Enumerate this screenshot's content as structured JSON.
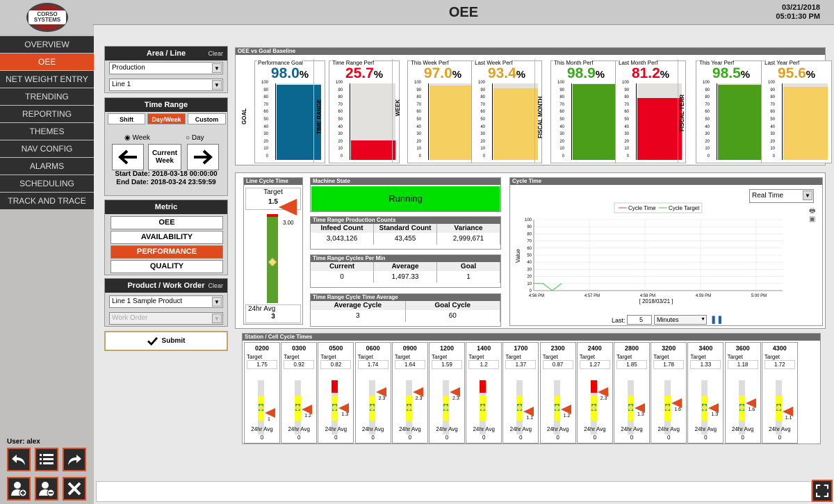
{
  "header": {
    "title": "OEE",
    "date": "03/21/2018",
    "time": "05:01:30 PM",
    "logo_text": "CORSO SYSTEMS"
  },
  "nav": [
    "OVERVIEW",
    "OEE",
    "NET WEIGHT ENTRY",
    "TRENDING",
    "REPORTING",
    "THEMES",
    "NAV CONFIG",
    "ALARMS",
    "SCHEDULING",
    "TRACK AND TRACE"
  ],
  "nav_active": "OEE",
  "user": "User: alex",
  "area_line": {
    "title": "Area / Line",
    "clear": "Clear",
    "area": "Production",
    "line": "Line 1"
  },
  "time_range": {
    "title": "Time Range",
    "tabs": [
      "Shift",
      "Day/Week",
      "Custom"
    ],
    "active_tab": "Day/Week",
    "week": "Week",
    "day": "Day",
    "current": "Current Week",
    "start": "Start Date: 2018-03-18 00:00:00",
    "end": "End Date: 2018-03-24 23:59:59"
  },
  "metric": {
    "title": "Metric",
    "options": [
      "OEE",
      "AVAILABILITY",
      "PERFORMANCE",
      "QUALITY"
    ],
    "active": "PERFORMANCE"
  },
  "product": {
    "title": "Product / Work Order",
    "clear": "Clear",
    "product": "Line 1 Sample Product",
    "work_order_placeholder": "Work Order"
  },
  "submit_label": "Submit",
  "oee_panel": {
    "title": "OEE vs Goal Baseline",
    "groups": [
      "GOAL",
      "TIME RANGE",
      "WEEK",
      "FISCAL MONTH",
      "FISCAL YEAR"
    ],
    "ticks": [
      "100",
      "90",
      "80",
      "70",
      "60",
      "50",
      "40",
      "30",
      "20",
      "10",
      "0"
    ],
    "gauges": [
      {
        "title": "Performance Goal",
        "value": "98.0",
        "num": 98.0,
        "color": "#0b6690",
        "fill": "#0b6690"
      },
      {
        "title": "Time Range Perf",
        "value": "25.7",
        "num": 25.7,
        "color": "#e8001c",
        "fill": "#e8001c"
      },
      {
        "title": "This Week Perf",
        "value": "97.0",
        "num": 97.0,
        "color": "#e0a020",
        "fill": "#f5d060"
      },
      {
        "title": "Last Week Perf",
        "value": "93.4",
        "num": 93.4,
        "color": "#e0a020",
        "fill": "#f5d060"
      },
      {
        "title": "This Month Perf",
        "value": "98.9",
        "num": 98.9,
        "color": "#3aaa1a",
        "fill": "#4a9e1a"
      },
      {
        "title": "Last Month Perf",
        "value": "81.2",
        "num": 81.2,
        "color": "#e8001c",
        "fill": "#e8001c"
      },
      {
        "title": "This Year Perf",
        "value": "98.5",
        "num": 98.5,
        "color": "#3aaa1a",
        "fill": "#4a9e1a"
      },
      {
        "title": "Last Year Perf",
        "value": "95.6",
        "num": 95.6,
        "color": "#e0a020",
        "fill": "#f5d060"
      }
    ],
    "pct": "%"
  },
  "line_cycle": {
    "title": "Line Cycle Time",
    "target_label": "Target",
    "target": "1.5",
    "marker": "3.00",
    "avg_label": "24hr Avg",
    "avg": "3"
  },
  "machine_state": {
    "title": "Machine State",
    "value": "Running"
  },
  "counts": {
    "title": "Time Range Production Counts",
    "headers": [
      "Infeed Count",
      "Standard Count",
      "Variance"
    ],
    "values": [
      "3,043,126",
      "43,455",
      "2,999,671"
    ]
  },
  "cycles_per_min": {
    "title": "Time Range Cycles Per Min",
    "headers": [
      "Current",
      "Average",
      "Goal"
    ],
    "values": [
      "0",
      "1,497.33",
      "1"
    ]
  },
  "cycle_avg": {
    "title": "Time Range Cycle Time Average",
    "headers": [
      "Average Cycle",
      "Goal Cycle"
    ],
    "values": [
      "3",
      "60"
    ]
  },
  "cycle_time": {
    "title": "Cycle Time",
    "mode": "Real Time",
    "ylabel": "Value",
    "last_label": "Last:",
    "last_value": "5",
    "unit": "Minutes"
  },
  "chart_data": {
    "type": "line",
    "series": [
      {
        "name": "Cycle Time",
        "color": "#e04040",
        "values": []
      },
      {
        "name": "Cycle Target",
        "color": "#40c040",
        "x": [
          "4:56:00",
          "4:56:10",
          "4:56:20",
          "4:56:30"
        ],
        "values": [
          10,
          10,
          0,
          10
        ]
      }
    ],
    "x_ticks": [
      "4:56 PM",
      "4:57 PM",
      "4:58 PM",
      "4:59 PM",
      "5:00 PM"
    ],
    "xlabel": "[ 2018/03/21 ]",
    "ylabel": "Value",
    "ylim": [
      0,
      10
    ],
    "y_ticks": [
      "0",
      "10",
      "20",
      "30",
      "40",
      "50",
      "60",
      "70",
      "80",
      "90",
      "100"
    ],
    "legend": "top-center"
  },
  "stations": {
    "title": "Station / Cell Cycle Times",
    "target_label": "Target",
    "avg_label": "24hr Avg",
    "items": [
      {
        "name": "0200",
        "target": "1.75",
        "marker": "1",
        "avg": "0",
        "red": false
      },
      {
        "name": "0300",
        "target": "0.92",
        "marker": "1.2",
        "avg": "0",
        "red": false
      },
      {
        "name": "0500",
        "target": "0.82",
        "marker": "1.3",
        "avg": "0",
        "red": true
      },
      {
        "name": "0600",
        "target": "1.74",
        "marker": "2.3",
        "avg": "0",
        "red": false
      },
      {
        "name": "0900",
        "target": "1.64",
        "marker": "2.3",
        "avg": "0",
        "red": false
      },
      {
        "name": "1200",
        "target": "1.59",
        "marker": "2.3",
        "avg": "0",
        "red": false
      },
      {
        "name": "1400",
        "target": "1.2",
        "marker": "",
        "avg": "0",
        "red": true
      },
      {
        "name": "1700",
        "target": "1.37",
        "marker": "1.1",
        "avg": "0",
        "red": false
      },
      {
        "name": "2300",
        "target": "0.87",
        "marker": "1.2",
        "avg": "0",
        "red": false
      },
      {
        "name": "2400",
        "target": "1.27",
        "marker": "2.3",
        "avg": "0",
        "red": true
      },
      {
        "name": "2800",
        "target": "1.85",
        "marker": "1.3",
        "avg": "0",
        "red": false
      },
      {
        "name": "3200",
        "target": "1.78",
        "marker": "1.6",
        "avg": "0",
        "red": false
      },
      {
        "name": "3400",
        "target": "1.33",
        "marker": "1.3",
        "avg": "0",
        "red": false
      },
      {
        "name": "3600",
        "target": "1.18",
        "marker": "1.6",
        "avg": "0",
        "red": false
      },
      {
        "name": "4300",
        "target": "1.72",
        "marker": "1.1",
        "avg": "0",
        "red": false
      }
    ]
  }
}
